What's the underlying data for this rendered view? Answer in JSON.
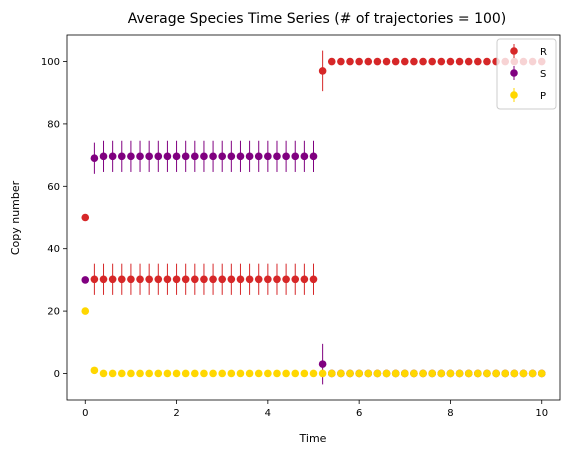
{
  "chart_data": {
    "type": "scatter",
    "title": "Average Species Time Series (# of trajectories = 100)",
    "xlabel": "Time",
    "ylabel": "Copy number",
    "xlim": [
      -0.4,
      10.4
    ],
    "ylim": [
      -8.5,
      108.5
    ],
    "xticks": [
      0,
      2,
      4,
      6,
      8,
      10
    ],
    "yticks": [
      0,
      20,
      40,
      60,
      80,
      100
    ],
    "x": [
      0,
      0.2,
      0.4,
      0.6,
      0.8,
      1.0,
      1.2,
      1.4,
      1.6,
      1.8,
      2.0,
      2.2,
      2.4,
      2.6,
      2.8,
      3.0,
      3.2,
      3.4,
      3.6,
      3.8,
      4.0,
      4.2,
      4.4,
      4.6,
      4.8,
      5.0,
      5.2,
      5.4,
      5.6,
      5.8,
      6.0,
      6.2,
      6.4,
      6.6,
      6.8,
      7.0,
      7.2,
      7.4,
      7.6,
      7.8,
      8.0,
      8.2,
      8.4,
      8.6,
      8.8,
      9.0,
      9.2,
      9.4,
      9.6,
      9.8,
      10.0
    ],
    "legend_position": "upper right",
    "series": [
      {
        "name": "R",
        "color": "#d62728",
        "y": [
          50,
          30.2,
          30.2,
          30.2,
          30.2,
          30.2,
          30.2,
          30.2,
          30.2,
          30.2,
          30.2,
          30.2,
          30.2,
          30.2,
          30.2,
          30.2,
          30.2,
          30.2,
          30.2,
          30.2,
          30.2,
          30.2,
          30.2,
          30.2,
          30.2,
          30.2,
          97,
          100,
          100,
          100,
          100,
          100,
          100,
          100,
          100,
          100,
          100,
          100,
          100,
          100,
          100,
          100,
          100,
          100,
          100,
          100,
          100,
          100,
          100,
          100,
          100
        ],
        "err": [
          0,
          5,
          5,
          5,
          5,
          5,
          5,
          5,
          5,
          5,
          5,
          5,
          5,
          5,
          5,
          5,
          5,
          5,
          5,
          5,
          5,
          5,
          5,
          5,
          5,
          5,
          6.5,
          0,
          0,
          0,
          0,
          0,
          0,
          0,
          0,
          0,
          0,
          0,
          0,
          0,
          0,
          0,
          0,
          0,
          0,
          0,
          0,
          0,
          0,
          0,
          0
        ]
      },
      {
        "name": "S",
        "color": "#800080",
        "y": [
          30,
          69,
          69.6,
          69.6,
          69.6,
          69.6,
          69.6,
          69.6,
          69.6,
          69.6,
          69.6,
          69.6,
          69.6,
          69.6,
          69.6,
          69.6,
          69.6,
          69.6,
          69.6,
          69.6,
          69.6,
          69.6,
          69.6,
          69.6,
          69.6,
          69.6,
          3,
          0,
          0,
          0,
          0,
          0,
          0,
          0,
          0,
          0,
          0,
          0,
          0,
          0,
          0,
          0,
          0,
          0,
          0,
          0,
          0,
          0,
          0,
          0,
          0
        ],
        "err": [
          0,
          5,
          5,
          5,
          5,
          5,
          5,
          5,
          5,
          5,
          5,
          5,
          5,
          5,
          5,
          5,
          5,
          5,
          5,
          5,
          5,
          5,
          5,
          5,
          5,
          5,
          6.5,
          0,
          0,
          0,
          0,
          0,
          0,
          0,
          0,
          0,
          0,
          0,
          0,
          0,
          0,
          0,
          0,
          0,
          0,
          0,
          0,
          0,
          0,
          0,
          0
        ]
      },
      {
        "name": "P",
        "color": "#ffd700",
        "y": [
          20,
          1,
          0,
          0,
          0,
          0,
          0,
          0,
          0,
          0,
          0,
          0,
          0,
          0,
          0,
          0,
          0,
          0,
          0,
          0,
          0,
          0,
          0,
          0,
          0,
          0,
          0,
          0,
          0,
          0,
          0,
          0,
          0,
          0,
          0,
          0,
          0,
          0,
          0,
          0,
          0,
          0,
          0,
          0,
          0,
          0,
          0,
          0,
          0,
          0,
          0
        ],
        "err": [
          0,
          0.5,
          0,
          0,
          0,
          0,
          0,
          0,
          0,
          0,
          0,
          0,
          0,
          0,
          0,
          0,
          0,
          0,
          0,
          0,
          0,
          0,
          0,
          0,
          0,
          0,
          0,
          0,
          0,
          0,
          0,
          0,
          0,
          0,
          0,
          0,
          0,
          0,
          0,
          0,
          0,
          0,
          0,
          0,
          0,
          0,
          0,
          0,
          0,
          0,
          0
        ]
      }
    ]
  }
}
